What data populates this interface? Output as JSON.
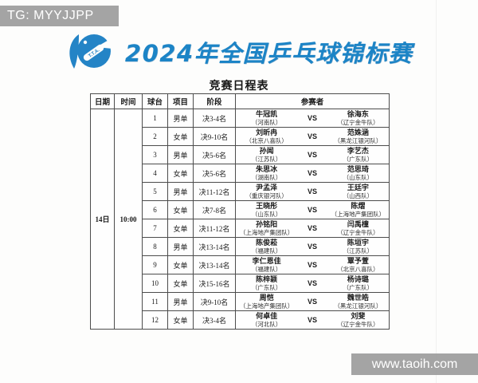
{
  "watermarks": {
    "top": "TG: MYYJJPP",
    "bottom": "www.taoih.com"
  },
  "header": {
    "title": "2024年全国乒乓球锦标赛",
    "subtitle": "竞赛日程表",
    "logo_label": "T.T.A.",
    "title_color": "#1c84c6",
    "logo_color": "#2484c6"
  },
  "table": {
    "headers": [
      "日期",
      "时间",
      "球台",
      "项目",
      "阶段",
      "参赛者"
    ],
    "date": "14日",
    "time": "10:00",
    "vs_label": "VS",
    "rows": [
      {
        "no": "1",
        "event": "男单",
        "stage": "决3-4名",
        "p1": "牛冠凯",
        "p1t": "（河南队）",
        "p2": "徐海东",
        "p2t": "（辽宁金牛队）"
      },
      {
        "no": "2",
        "event": "女单",
        "stage": "决9-10名",
        "p1": "刘昕冉",
        "p1t": "（北京八喜队）",
        "p2": "范姝涵",
        "p2t": "（黑龙江银河队）"
      },
      {
        "no": "3",
        "event": "男单",
        "stage": "决5-6名",
        "p1": "孙闻",
        "p1t": "（江苏队）",
        "p2": "李艺杰",
        "p2t": "（广东队）"
      },
      {
        "no": "4",
        "event": "女单",
        "stage": "决5-6名",
        "p1": "朱思冰",
        "p1t": "（湖南队）",
        "p2": "范思琦",
        "p2t": "（山东队）"
      },
      {
        "no": "5",
        "event": "男单",
        "stage": "决11-12名",
        "p1": "尹孟泽",
        "p1t": "（重庆银河队）",
        "p2": "王廷宇",
        "p2t": "（山西队）"
      },
      {
        "no": "6",
        "event": "女单",
        "stage": "决7-8名",
        "p1": "王晓彤",
        "p1t": "（山东队）",
        "p2": "陈熠",
        "p2t": "（上海地产集团队）"
      },
      {
        "no": "7",
        "event": "女单",
        "stage": "决11-12名",
        "p1": "孙铭阳",
        "p1t": "（上海地产集团队）",
        "p2": "闫禹橦",
        "p2t": "（辽宁金牛队）"
      },
      {
        "no": "8",
        "event": "男单",
        "stage": "决13-14名",
        "p1": "陈俊菘",
        "p1t": "（福建队）",
        "p2": "陈垣宇",
        "p2t": "（江苏队）"
      },
      {
        "no": "9",
        "event": "女单",
        "stage": "决13-14名",
        "p1": "李仁恩佳",
        "p1t": "（福建队）",
        "p2": "覃予萱",
        "p2t": "（北京八喜队）"
      },
      {
        "no": "10",
        "event": "女单",
        "stage": "决15-16名",
        "p1": "陈梓颖",
        "p1t": "（广东队）",
        "p2": "杨诗璐",
        "p2t": "（广东队）"
      },
      {
        "no": "11",
        "event": "男单",
        "stage": "决9-10名",
        "p1": "周恺",
        "p1t": "（上海地产集团队）",
        "p2": "魏世皓",
        "p2t": "（黑龙江银河队）"
      },
      {
        "no": "12",
        "event": "女单",
        "stage": "决3-4名",
        "p1": "何卓佳",
        "p1t": "（河北队）",
        "p2": "刘斐",
        "p2t": "（辽宁金牛队）"
      }
    ]
  }
}
